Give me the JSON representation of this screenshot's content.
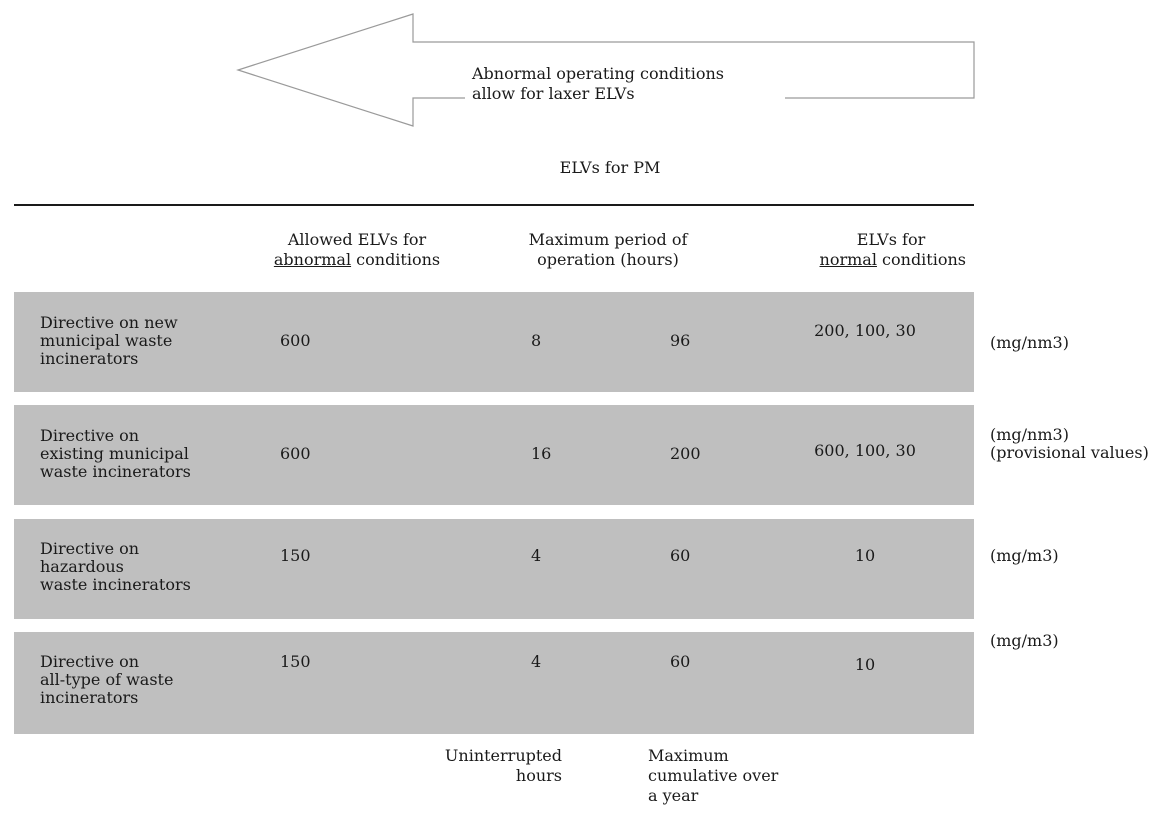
{
  "arrow": {
    "label_line1": "Abnormal operating conditions",
    "label_line2": "allow for laxer ELVs"
  },
  "title": "ELVs for PM",
  "headers": {
    "abnormal_line1": "Allowed ELVs for",
    "abnormal_underlined": "abnormal",
    "abnormal_rest": " conditions",
    "period_line1": "Maximum period of",
    "period_line2": "operation (hours)",
    "normal_line1": "ELVs for",
    "normal_underlined": "normal",
    "normal_rest": " conditions"
  },
  "rows": [
    {
      "directive_lines": [
        "Directive on new",
        "municipal waste",
        "incinerators"
      ],
      "abnormal": "600",
      "uninterrupted": "8",
      "cumulative": "96",
      "normal": "200, 100, 30",
      "unit_lines": [
        "(mg/nm3)"
      ]
    },
    {
      "directive_lines": [
        "Directive on",
        "existing municipal",
        "waste incinerators"
      ],
      "abnormal": "600",
      "uninterrupted": "16",
      "cumulative": "200",
      "normal": "600, 100, 30",
      "unit_lines": [
        "(mg/nm3)",
        "(provisional values)"
      ]
    },
    {
      "directive_lines": [
        "Directive on",
        "hazardous",
        "waste incinerators"
      ],
      "abnormal": "150",
      "uninterrupted": "4",
      "cumulative": "60",
      "normal": "10",
      "unit_lines": [
        "(mg/m3)"
      ]
    },
    {
      "directive_lines": [
        "Directive on",
        "all-type of waste",
        "incinerators"
      ],
      "abnormal": "150",
      "uninterrupted": "4",
      "cumulative": "60",
      "normal": "10",
      "unit_lines": [
        "(mg/m3)"
      ]
    }
  ],
  "footer": {
    "uninterrupted_line1": "Uninterrupted",
    "uninterrupted_line2": "hours",
    "cumulative_line1": "Maximum",
    "cumulative_line2": "cumulative over",
    "cumulative_line3": "a year"
  },
  "colors": {
    "band": "#bfbfbf",
    "arrow_stroke": "#9a9a9a",
    "text": "#1a1a1a"
  }
}
